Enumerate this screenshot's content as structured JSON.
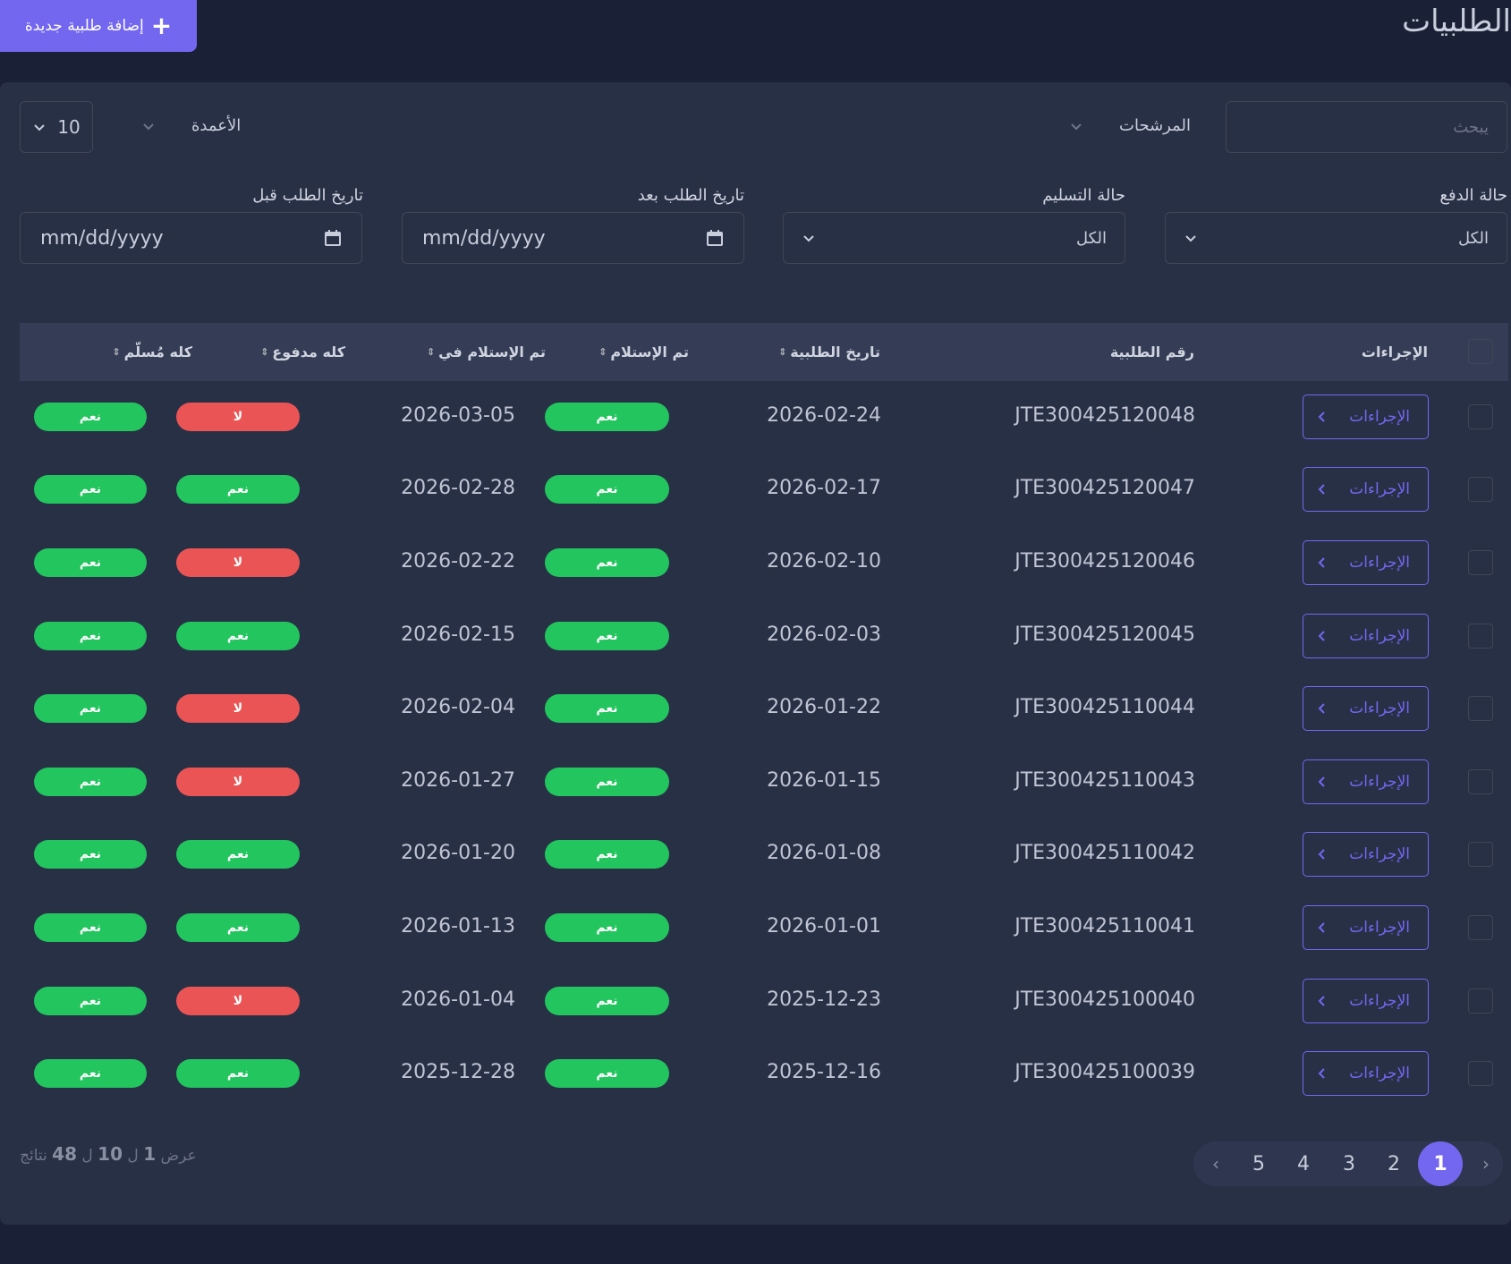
{
  "header": {
    "title": "الطلبيات",
    "add_label": "إضافة طلبية جديدة"
  },
  "toolbar": {
    "search_placeholder": "يبحث",
    "filters_label": "المرشحات",
    "columns_label": "الأعمدة",
    "page_size": "10"
  },
  "filters": {
    "payment_status_label": "حالة الدفع",
    "payment_status_value": "الكل",
    "delivery_status_label": "حالة التسليم",
    "delivery_status_value": "الكل",
    "date_after_label": "تاريخ الطلب بعد",
    "date_after_placeholder": "mm/dd/yyyy",
    "date_before_label": "تاريخ الطلب قبل",
    "date_before_placeholder": "mm/dd/yyyy"
  },
  "table": {
    "headers": {
      "actions": "الإجراءات",
      "order_number": "رقم الطلبية",
      "order_date": "تاريخ الطلبية",
      "received": "تم الإستلام",
      "received_at": "تم الإستلام في",
      "fully_paid": "كله مدفوع",
      "fully_delivered": "كله مُسلّم"
    },
    "action_label": "الإجراءات",
    "rows": [
      {
        "order_number": "JTE300425120048",
        "order_date": "2026-02-24",
        "received": "نعم",
        "received_at": "2026-03-05",
        "fully_paid": "لا",
        "fully_delivered": "نعم"
      },
      {
        "order_number": "JTE300425120047",
        "order_date": "2026-02-17",
        "received": "نعم",
        "received_at": "2026-02-28",
        "fully_paid": "نعم",
        "fully_delivered": "نعم"
      },
      {
        "order_number": "JTE300425120046",
        "order_date": "2026-02-10",
        "received": "نعم",
        "received_at": "2026-02-22",
        "fully_paid": "لا",
        "fully_delivered": "نعم"
      },
      {
        "order_number": "JTE300425120045",
        "order_date": "2026-02-03",
        "received": "نعم",
        "received_at": "2026-02-15",
        "fully_paid": "نعم",
        "fully_delivered": "نعم"
      },
      {
        "order_number": "JTE300425110044",
        "order_date": "2026-01-22",
        "received": "نعم",
        "received_at": "2026-02-04",
        "fully_paid": "لا",
        "fully_delivered": "نعم"
      },
      {
        "order_number": "JTE300425110043",
        "order_date": "2026-01-15",
        "received": "نعم",
        "received_at": "2026-01-27",
        "fully_paid": "لا",
        "fully_delivered": "نعم"
      },
      {
        "order_number": "JTE300425110042",
        "order_date": "2026-01-08",
        "received": "نعم",
        "received_at": "2026-01-20",
        "fully_paid": "نعم",
        "fully_delivered": "نعم"
      },
      {
        "order_number": "JTE300425110041",
        "order_date": "2026-01-01",
        "received": "نعم",
        "received_at": "2026-01-13",
        "fully_paid": "نعم",
        "fully_delivered": "نعم"
      },
      {
        "order_number": "JTE300425100040",
        "order_date": "2025-12-23",
        "received": "نعم",
        "received_at": "2026-01-04",
        "fully_paid": "لا",
        "fully_delivered": "نعم"
      },
      {
        "order_number": "JTE300425100039",
        "order_date": "2025-12-16",
        "received": "نعم",
        "received_at": "2025-12-28",
        "fully_paid": "نعم",
        "fully_delivered": "نعم"
      }
    ]
  },
  "summary": {
    "prefix": "عرض",
    "from": "1",
    "sep1": "ل",
    "to": "10",
    "sep2": "ل",
    "total": "48",
    "suffix": "نتائج"
  },
  "pagination": {
    "pages": [
      "5",
      "4",
      "3",
      "2",
      "1"
    ],
    "active": "1",
    "prev": "‹",
    "next": "›"
  },
  "colors": {
    "accent": "#7367f0",
    "yes": "#22c55e",
    "no": "#ea5455",
    "card": "#283046",
    "page": "#1a2035"
  }
}
